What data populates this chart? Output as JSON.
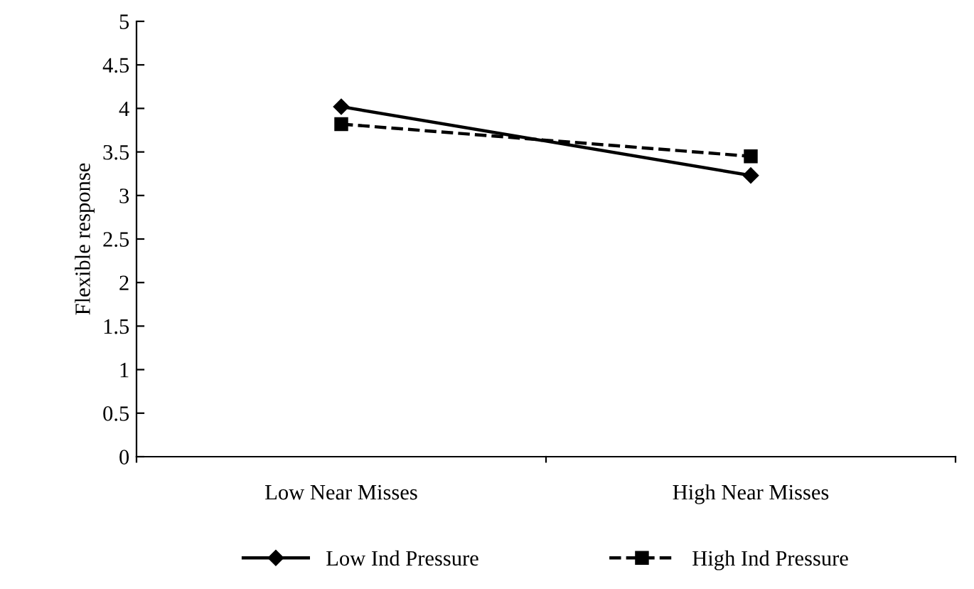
{
  "chart_data": {
    "type": "line",
    "ylabel": "Flexible response",
    "categories": [
      "Low Near Misses",
      "High Near Misses"
    ],
    "series": [
      {
        "name": "Low Ind Pressure",
        "color": "#000000",
        "values": [
          4.02,
          3.23
        ],
        "marker": "diamond",
        "line_style": "solid"
      },
      {
        "name": "High Ind Pressure",
        "color": "#000000",
        "values": [
          3.82,
          3.45
        ],
        "marker": "square",
        "line_style": "dashed"
      }
    ],
    "ylim": [
      0,
      5
    ],
    "yticks": [
      0,
      0.5,
      1,
      1.5,
      2,
      2.5,
      3,
      3.5,
      4,
      4.5,
      5
    ],
    "grid": false,
    "legend": "bottom"
  }
}
